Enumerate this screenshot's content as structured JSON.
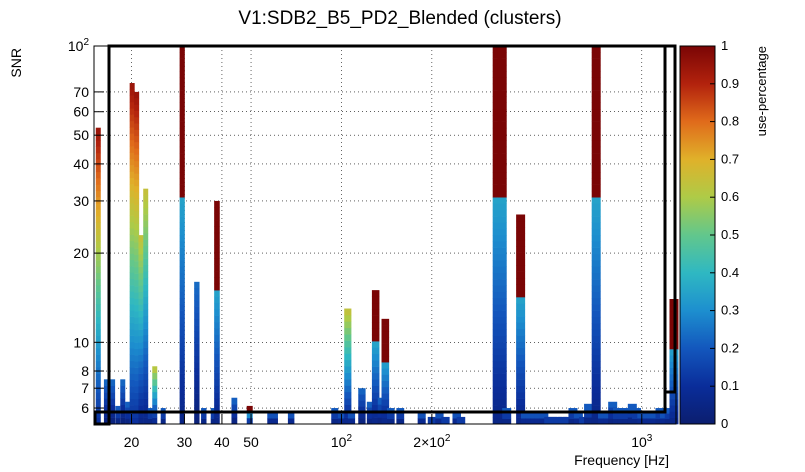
{
  "chart_data": {
    "type": "heatmap",
    "title": "V1:SDB2_B5_PD2_Blended (clusters)",
    "xlabel": "Frequency [Hz]",
    "ylabel": "SNR",
    "zlabel": "use-percentage",
    "x_scale": "log",
    "y_scale": "log",
    "xlim": [
      15,
      1300
    ],
    "ylim": [
      5.3,
      100
    ],
    "zlim": [
      0,
      1
    ],
    "x_ticks": [
      {
        "value": 20,
        "label": "20"
      },
      {
        "value": 30,
        "label": "30"
      },
      {
        "value": 40,
        "label": "40"
      },
      {
        "value": 50,
        "label": "50"
      },
      {
        "value": 100,
        "label": "10^2"
      },
      {
        "value": 200,
        "label": "2×10^2"
      },
      {
        "value": 1000,
        "label": "10^3"
      }
    ],
    "y_ticks": [
      {
        "value": 6,
        "label": "6"
      },
      {
        "value": 7,
        "label": "7"
      },
      {
        "value": 8,
        "label": "8"
      },
      {
        "value": 10,
        "label": "10"
      },
      {
        "value": 20,
        "label": "20"
      },
      {
        "value": 30,
        "label": "30"
      },
      {
        "value": 40,
        "label": "40"
      },
      {
        "value": 50,
        "label": "50"
      },
      {
        "value": 60,
        "label": "60"
      },
      {
        "value": 70,
        "label": "70"
      },
      {
        "value": 100,
        "label": "10^2"
      }
    ],
    "z_ticks": [
      "0",
      "0.1",
      "0.2",
      "0.3",
      "0.4",
      "0.5",
      "0.6",
      "0.7",
      "0.8",
      "0.9",
      "1"
    ],
    "columns": [
      {
        "freq": 15.5,
        "snr_top": 53,
        "mode": "low"
      },
      {
        "freq": 16.5,
        "snr_top": 7.5,
        "mode": "blue"
      },
      {
        "freq": 17.3,
        "snr_top": 7.5,
        "mode": "blue"
      },
      {
        "freq": 18.0,
        "snr_top": 6.1,
        "mode": "blue"
      },
      {
        "freq": 18.7,
        "snr_top": 7.5,
        "mode": "blue"
      },
      {
        "freq": 19.4,
        "snr_top": 6.3,
        "mode": "blue"
      },
      {
        "freq": 20.1,
        "snr_top": 75,
        "mode": "low"
      },
      {
        "freq": 20.8,
        "snr_top": 70,
        "mode": "low"
      },
      {
        "freq": 21.5,
        "snr_top": 23,
        "mode": "mid"
      },
      {
        "freq": 22.3,
        "snr_top": 33,
        "mode": "mid"
      },
      {
        "freq": 23.1,
        "snr_top": 6.0,
        "mode": "blue"
      },
      {
        "freq": 23.9,
        "snr_top": 8.3,
        "mode": "mid"
      },
      {
        "freq": 25.5,
        "snr_top": 6.0,
        "mode": "blue"
      },
      {
        "freq": 29.5,
        "snr_top": 100,
        "mode": "tall"
      },
      {
        "freq": 33.0,
        "snr_top": 16.0,
        "mode": "blue"
      },
      {
        "freq": 34.8,
        "snr_top": 6.0,
        "mode": "blue"
      },
      {
        "freq": 37.5,
        "snr_top": 6.0,
        "mode": "blue"
      },
      {
        "freq": 38.5,
        "snr_top": 30,
        "mode": "tall"
      },
      {
        "freq": 44.0,
        "snr_top": 6.5,
        "mode": "blue"
      },
      {
        "freq": 49.5,
        "snr_top": 6.1,
        "mode": "tall"
      },
      {
        "freq": 58.0,
        "snr_top": 5.8,
        "mode": "blue"
      },
      {
        "freq": 60.0,
        "snr_top": 5.8,
        "mode": "blue"
      },
      {
        "freq": 68.0,
        "snr_top": 5.8,
        "mode": "blue"
      },
      {
        "freq": 95.0,
        "snr_top": 6.0,
        "mode": "blue"
      },
      {
        "freq": 100.0,
        "snr_top": 5.8,
        "mode": "blue"
      },
      {
        "freq": 105.0,
        "snr_top": 13.0,
        "mode": "mid"
      },
      {
        "freq": 108.0,
        "snr_top": 5.8,
        "mode": "blue"
      },
      {
        "freq": 117.0,
        "snr_top": 7.0,
        "mode": "blue"
      },
      {
        "freq": 125.0,
        "snr_top": 6.3,
        "mode": "blue"
      },
      {
        "freq": 130.0,
        "snr_top": 15.0,
        "mode": "tall"
      },
      {
        "freq": 136.0,
        "snr_top": 6.5,
        "mode": "blue"
      },
      {
        "freq": 140.0,
        "snr_top": 12.0,
        "mode": "tall"
      },
      {
        "freq": 146.0,
        "snr_top": 6.0,
        "mode": "blue"
      },
      {
        "freq": 157.0,
        "snr_top": 6.0,
        "mode": "blue"
      },
      {
        "freq": 185.0,
        "snr_top": 5.8,
        "mode": "blue"
      },
      {
        "freq": 200.0,
        "snr_top": 5.6,
        "mode": "blue"
      },
      {
        "freq": 212.0,
        "snr_top": 5.8,
        "mode": "blue"
      },
      {
        "freq": 222.0,
        "snr_top": 5.6,
        "mode": "blue"
      },
      {
        "freq": 242.0,
        "snr_top": 5.8,
        "mode": "blue"
      },
      {
        "freq": 250.0,
        "snr_top": 5.6,
        "mode": "blue"
      },
      {
        "freq": 330.0,
        "snr_top": 100,
        "mode": "tall"
      },
      {
        "freq": 343.0,
        "snr_top": 100,
        "mode": "tall"
      },
      {
        "freq": 355.0,
        "snr_top": 6.0,
        "mode": "blue"
      },
      {
        "freq": 395.0,
        "snr_top": 27,
        "mode": "tall"
      },
      {
        "freq": 410.0,
        "snr_top": 5.8,
        "mode": "blue"
      },
      {
        "freq": 425.0,
        "snr_top": 5.8,
        "mode": "blue"
      },
      {
        "freq": 440.0,
        "snr_top": 5.8,
        "mode": "blue"
      },
      {
        "freq": 455.0,
        "snr_top": 5.8,
        "mode": "blue"
      },
      {
        "freq": 472.0,
        "snr_top": 5.8,
        "mode": "blue"
      },
      {
        "freq": 490.0,
        "snr_top": 5.6,
        "mode": "blue"
      },
      {
        "freq": 505.0,
        "snr_top": 5.6,
        "mode": "blue"
      },
      {
        "freq": 525.0,
        "snr_top": 5.6,
        "mode": "blue"
      },
      {
        "freq": 545.0,
        "snr_top": 5.6,
        "mode": "blue"
      },
      {
        "freq": 565.0,
        "snr_top": 5.6,
        "mode": "blue"
      },
      {
        "freq": 590.0,
        "snr_top": 6.0,
        "mode": "blue"
      },
      {
        "freq": 615.0,
        "snr_top": 5.8,
        "mode": "blue"
      },
      {
        "freq": 640.0,
        "snr_top": 5.6,
        "mode": "blue"
      },
      {
        "freq": 665.0,
        "snr_top": 6.2,
        "mode": "blue"
      },
      {
        "freq": 705.0,
        "snr_top": 100,
        "mode": "tall"
      },
      {
        "freq": 740.0,
        "snr_top": 5.8,
        "mode": "blue"
      },
      {
        "freq": 770.0,
        "snr_top": 5.8,
        "mode": "blue"
      },
      {
        "freq": 800.0,
        "snr_top": 6.3,
        "mode": "blue"
      },
      {
        "freq": 830.0,
        "snr_top": 6.0,
        "mode": "blue"
      },
      {
        "freq": 860.0,
        "snr_top": 6.0,
        "mode": "blue"
      },
      {
        "freq": 895.0,
        "snr_top": 6.0,
        "mode": "blue"
      },
      {
        "freq": 930.0,
        "snr_top": 6.2,
        "mode": "blue"
      },
      {
        "freq": 960.0,
        "snr_top": 6.0,
        "mode": "blue"
      },
      {
        "freq": 1000.0,
        "snr_top": 5.8,
        "mode": "blue"
      },
      {
        "freq": 1040.0,
        "snr_top": 5.8,
        "mode": "blue"
      },
      {
        "freq": 1075.0,
        "snr_top": 5.8,
        "mode": "blue"
      },
      {
        "freq": 1110.0,
        "snr_top": 5.8,
        "mode": "blue"
      },
      {
        "freq": 1150.0,
        "snr_top": 6.0,
        "mode": "blue"
      },
      {
        "freq": 1190.0,
        "snr_top": 5.8,
        "mode": "blue"
      },
      {
        "freq": 1235.0,
        "snr_top": 6.0,
        "mode": "blue"
      },
      {
        "freq": 1280.0,
        "snr_top": 14.0,
        "mode": "tall"
      }
    ]
  }
}
